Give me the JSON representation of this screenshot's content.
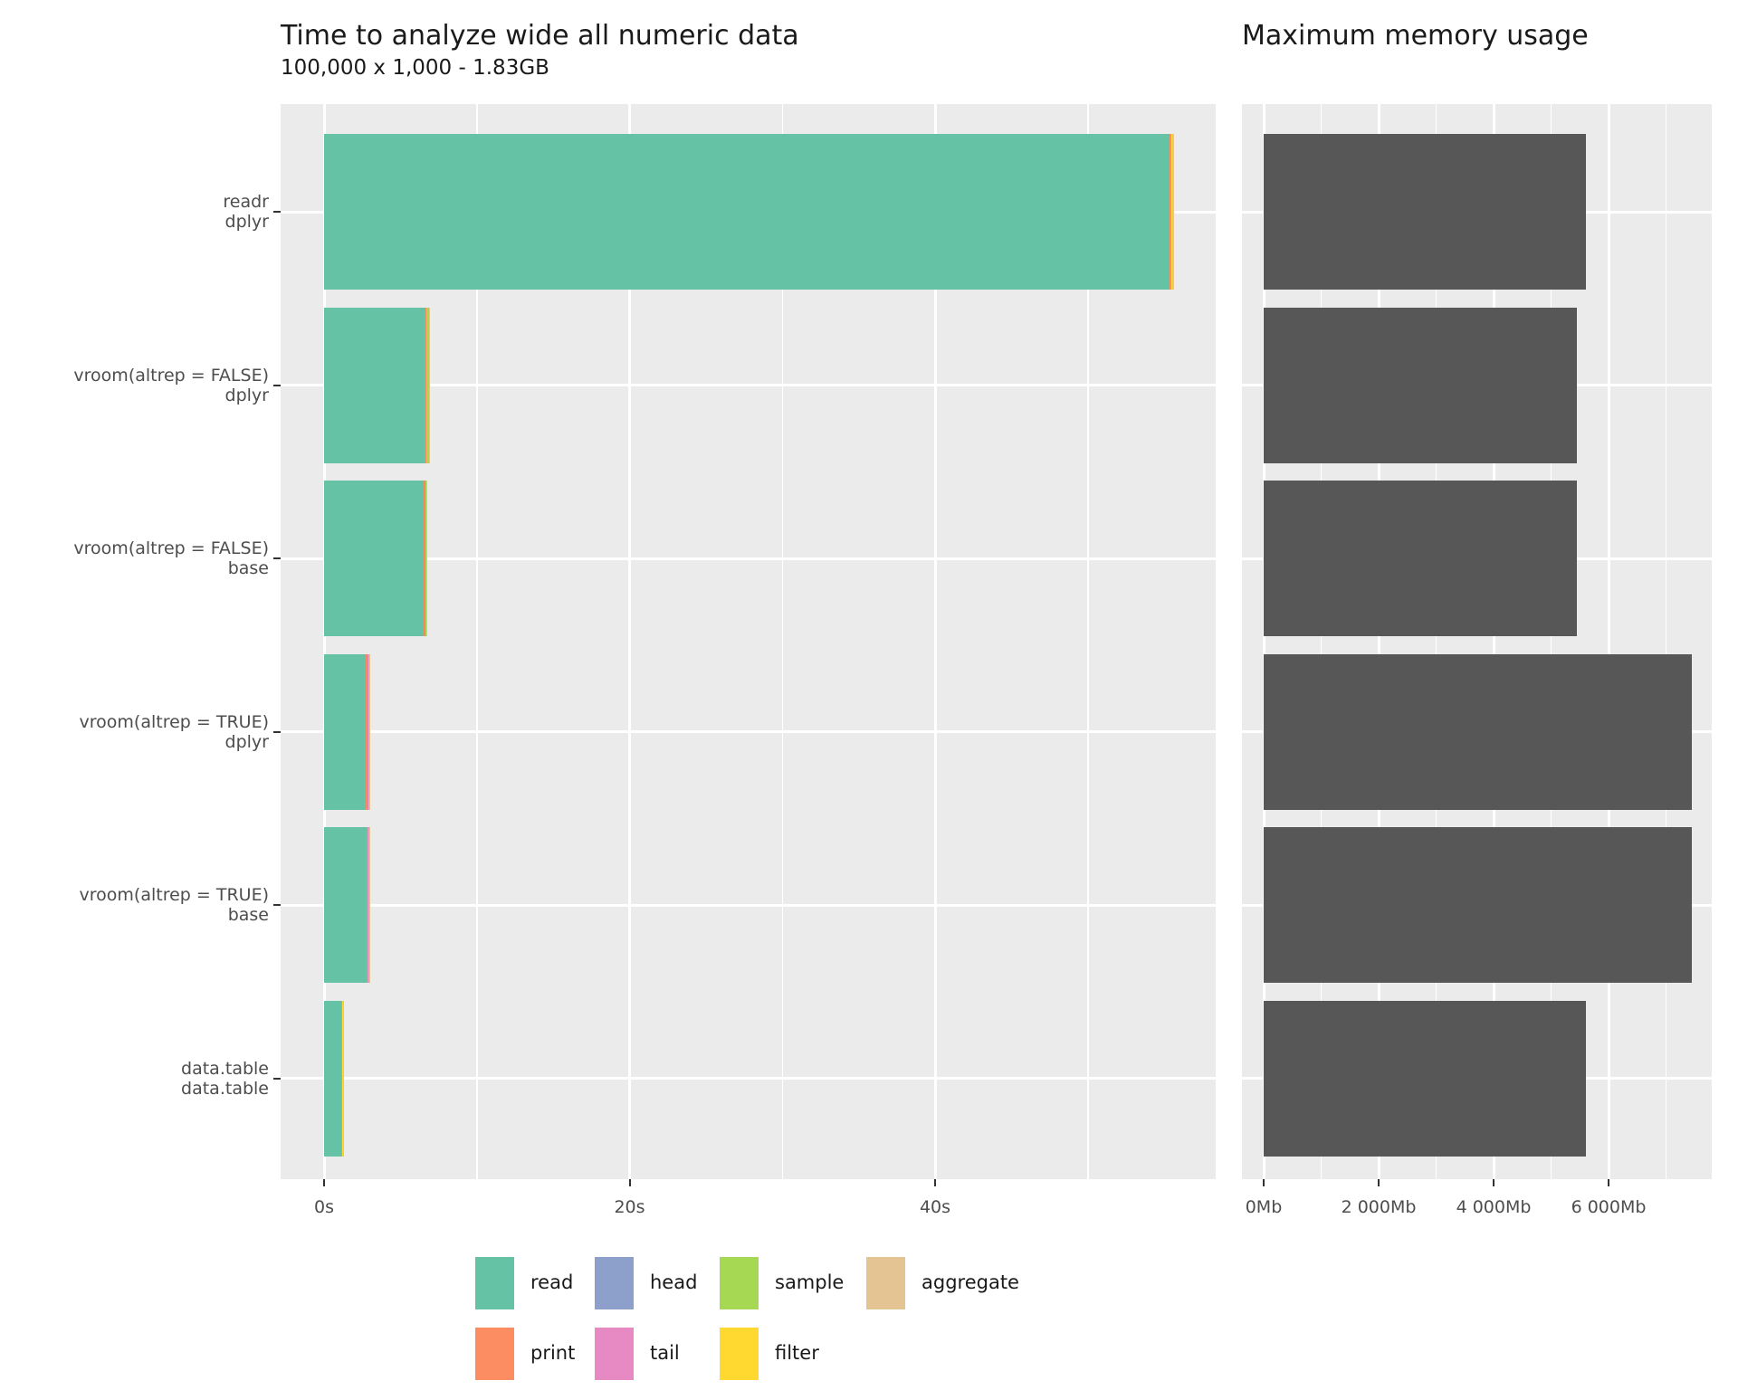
{
  "style": {
    "panel_bg": "#EBEBEB",
    "grid_color": "#FFFFFF",
    "axis_text_color": "#4D4D4D",
    "title_color": "#1A1A1A",
    "tick_mark_color": "#333333"
  },
  "legend": {
    "items": [
      {
        "label": "read",
        "color": "#66C2A5"
      },
      {
        "label": "head",
        "color": "#8DA0CB"
      },
      {
        "label": "sample",
        "color": "#A6D854"
      },
      {
        "label": "aggregate",
        "color": "#E5C494"
      },
      {
        "label": "print",
        "color": "#FC8D62"
      },
      {
        "label": "tail",
        "color": "#E78AC3"
      },
      {
        "label": "filter",
        "color": "#FFD92F"
      }
    ]
  },
  "chart_data": [
    {
      "type": "bar",
      "orientation": "horizontal",
      "stacked": true,
      "title": "Time to analyze wide all numeric data",
      "subtitle": "100,000 x 1,000 - 1.83GB",
      "xlabel": "",
      "ylabel": "",
      "x_unit": "seconds",
      "xlim": [
        0,
        58.4
      ],
      "grid": true,
      "categories": [
        [
          "readr",
          "dplyr"
        ],
        [
          "vroom(altrep = FALSE)",
          "dplyr"
        ],
        [
          "vroom(altrep = FALSE)",
          "base"
        ],
        [
          "vroom(altrep = TRUE)",
          "dplyr"
        ],
        [
          "vroom(altrep = TRUE)",
          "base"
        ],
        [
          "data.table",
          "data.table"
        ]
      ],
      "series": [
        {
          "name": "read",
          "color": "#66C2A5",
          "values": [
            55.35,
            6.62,
            6.52,
            2.72,
            2.76,
            1.12
          ]
        },
        {
          "name": "print",
          "color": "#FC8D62",
          "values": [
            0.06,
            0.06,
            0.06,
            0.07,
            0.07,
            0.06
          ]
        },
        {
          "name": "head",
          "color": "#8DA0CB",
          "values": [
            0.02,
            0.02,
            0.05,
            0.03,
            0.02,
            0.01
          ]
        },
        {
          "name": "tail",
          "color": "#E78AC3",
          "values": [
            0.02,
            0.02,
            0.02,
            0.08,
            0.06,
            0.01
          ]
        },
        {
          "name": "sample",
          "color": "#A6D854",
          "values": [
            0.04,
            0.16,
            0.02,
            0.05,
            0.04,
            0.01
          ]
        },
        {
          "name": "filter",
          "color": "#FFD92F",
          "values": [
            0.02,
            0.02,
            0.02,
            0.03,
            0.02,
            0.01
          ]
        },
        {
          "name": "aggregate",
          "color": "#E5C494",
          "values": [
            0.15,
            0.04,
            0.04,
            0.06,
            0.06,
            0.04
          ]
        }
      ],
      "totals_seconds": [
        55.66,
        6.94,
        6.73,
        3.04,
        3.03,
        1.26
      ],
      "x_major_ticks": [
        {
          "value": 0,
          "label": "0s"
        },
        {
          "value": 20,
          "label": "20s"
        },
        {
          "value": 40,
          "label": "40s"
        }
      ],
      "x_minor_ticks": [
        10,
        30,
        50
      ],
      "legend_position": "bottom"
    },
    {
      "type": "bar",
      "orientation": "horizontal",
      "stacked": false,
      "title": "Maximum memory usage",
      "xlabel": "",
      "ylabel": "",
      "x_unit": "Mb",
      "xlim": [
        0,
        7795
      ],
      "grid": true,
      "categories": [
        [
          "readr",
          "dplyr"
        ],
        [
          "vroom(altrep = FALSE)",
          "dplyr"
        ],
        [
          "vroom(altrep = FALSE)",
          "base"
        ],
        [
          "vroom(altrep = TRUE)",
          "dplyr"
        ],
        [
          "vroom(altrep = TRUE)",
          "base"
        ],
        [
          "data.table",
          "data.table"
        ]
      ],
      "bar_color": "#575757",
      "values_mb": [
        5600,
        5450,
        5450,
        7450,
        7450,
        5600
      ],
      "x_major_ticks": [
        {
          "value": 0,
          "label": "0Mb"
        },
        {
          "value": 2000,
          "label": "2 000Mb"
        },
        {
          "value": 4000,
          "label": "4 000Mb"
        },
        {
          "value": 6000,
          "label": "6 000Mb"
        }
      ],
      "x_minor_ticks": [
        1000,
        3000,
        5000,
        7000
      ]
    }
  ]
}
